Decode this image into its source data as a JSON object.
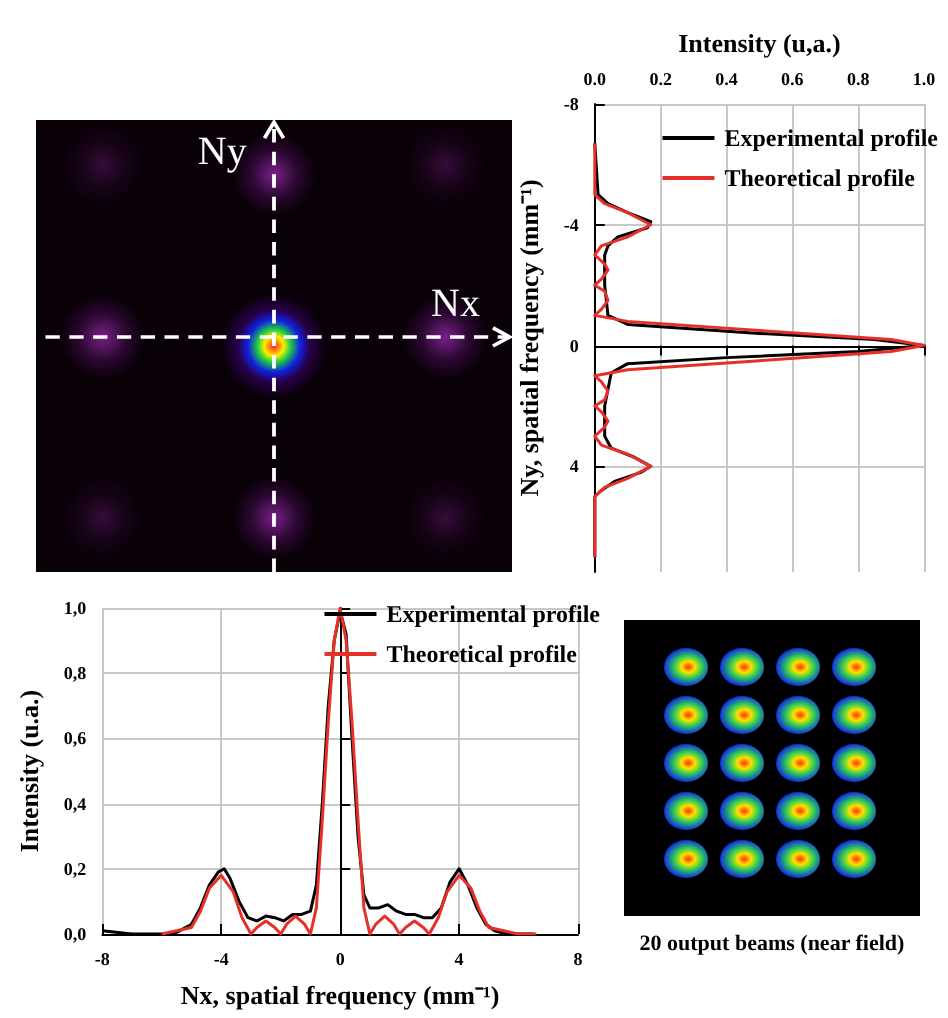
{
  "chart_data": [
    {
      "type": "other",
      "annotations": [
        "Ny",
        "Nx"
      ]
    },
    {
      "type": "line",
      "orientation": "horizontal",
      "xlabel": "Intensity (u,a.)",
      "ylabel": "Ny, spatial frequency (mm⁻¹)",
      "xlim": [
        0,
        1
      ],
      "xticks": [
        {
          "value": 0,
          "label": "0.0"
        },
        {
          "value": 0.2,
          "label": "0.2"
        },
        {
          "value": 0.4,
          "label": "0.4"
        },
        {
          "value": 0.6,
          "label": "0.6"
        },
        {
          "value": 0.8,
          "label": "0.8"
        },
        {
          "value": 1,
          "label": "1.0"
        }
      ],
      "ylim": [
        7.5,
        -8
      ],
      "yticks": [
        -8,
        -4,
        0,
        4
      ],
      "grid": true,
      "legend": "top right",
      "series": [
        {
          "name": "Experimental profile",
          "color": "#000000",
          "x": [
            -6.7,
            -5,
            -4.7,
            -4.4,
            -4.1,
            -3.9,
            -3.6,
            -3.3,
            -3,
            -2,
            -1,
            -0.7,
            -0.4,
            -0.2,
            0,
            0.2,
            0.4,
            0.6,
            0.9,
            2,
            3,
            3.4,
            3.7,
            4,
            4.2,
            4.5,
            4.8,
            5,
            7
          ],
          "values": [
            0,
            0.01,
            0.04,
            0.1,
            0.17,
            0.16,
            0.07,
            0.04,
            0.03,
            0.03,
            0.04,
            0.1,
            0.5,
            0.85,
            1,
            0.8,
            0.4,
            0.1,
            0.05,
            0.03,
            0.03,
            0.05,
            0.12,
            0.17,
            0.14,
            0.06,
            0.02,
            0,
            0
          ]
        },
        {
          "name": "Theoretical profile",
          "color": "#e8302a",
          "x": [
            -6.7,
            -5,
            -4.7,
            -4.4,
            -4,
            -3.6,
            -3.3,
            -3,
            -2.7,
            -2.5,
            -2.2,
            -2,
            -1.8,
            -1.5,
            -1.2,
            -1,
            -0.8,
            -0.5,
            -0.2,
            0,
            0.2,
            0.5,
            0.8,
            1,
            1.2,
            1.5,
            1.8,
            2,
            2.2,
            2.5,
            2.7,
            3,
            3.3,
            3.6,
            4,
            4.4,
            4.7,
            5,
            7
          ],
          "values": [
            0,
            0,
            0.03,
            0.1,
            0.17,
            0.1,
            0.02,
            0,
            0.03,
            0.04,
            0.02,
            0,
            0.03,
            0.04,
            0.02,
            0,
            0.1,
            0.5,
            0.9,
            1,
            0.9,
            0.5,
            0.1,
            0,
            0.02,
            0.04,
            0.03,
            0,
            0.02,
            0.04,
            0.03,
            0,
            0.02,
            0.1,
            0.17,
            0.1,
            0.03,
            0,
            0
          ]
        }
      ]
    },
    {
      "type": "line",
      "xlabel": "Nx, spatial frequency (mm⁻¹)",
      "ylabel": "Intensity (u.a.)",
      "xlim": [
        -8,
        8
      ],
      "xticks": [
        -8,
        -4,
        0,
        4,
        8
      ],
      "ylim": [
        0,
        1
      ],
      "yticks": [
        {
          "value": 0,
          "label": "0,0"
        },
        {
          "value": 0.2,
          "label": "0,2"
        },
        {
          "value": 0.4,
          "label": "0,4"
        },
        {
          "value": 0.6,
          "label": "0,6"
        },
        {
          "value": 0.8,
          "label": "0,8"
        },
        {
          "value": 1,
          "label": "1,0"
        }
      ],
      "grid": true,
      "legend": "top right",
      "series": [
        {
          "name": "Experimental profile",
          "color": "#000000",
          "x": [
            -8,
            -7,
            -6,
            -5.5,
            -5,
            -4.7,
            -4.4,
            -4.1,
            -3.9,
            -3.7,
            -3.4,
            -3.1,
            -2.8,
            -2.5,
            -2.2,
            -1.9,
            -1.6,
            -1.3,
            -1,
            -0.8,
            -0.6,
            -0.4,
            -0.2,
            0,
            0.2,
            0.4,
            0.6,
            0.8,
            1,
            1.3,
            1.6,
            1.9,
            2.2,
            2.5,
            2.8,
            3.1,
            3.4,
            3.7,
            4,
            4.3,
            4.6,
            4.9,
            5.2,
            5.6,
            6.5
          ],
          "values": [
            0.01,
            0,
            0,
            0.005,
            0.03,
            0.08,
            0.15,
            0.19,
            0.2,
            0.17,
            0.1,
            0.05,
            0.04,
            0.055,
            0.05,
            0.04,
            0.06,
            0.06,
            0.07,
            0.15,
            0.4,
            0.7,
            0.9,
            0.99,
            0.92,
            0.6,
            0.3,
            0.12,
            0.08,
            0.08,
            0.09,
            0.07,
            0.06,
            0.06,
            0.05,
            0.05,
            0.08,
            0.16,
            0.2,
            0.15,
            0.08,
            0.03,
            0.01,
            0,
            0
          ]
        },
        {
          "name": "Theoretical profile",
          "color": "#e8302a",
          "x": [
            -6,
            -5,
            -4.7,
            -4.4,
            -4,
            -3.6,
            -3.3,
            -3,
            -2.8,
            -2.5,
            -2.2,
            -2,
            -1.8,
            -1.5,
            -1.2,
            -1,
            -0.8,
            -0.6,
            -0.4,
            -0.2,
            0,
            0.2,
            0.4,
            0.6,
            0.8,
            1,
            1.2,
            1.5,
            1.8,
            2,
            2.2,
            2.5,
            2.8,
            3,
            3.3,
            3.6,
            4,
            4.4,
            4.7,
            5,
            6,
            6.6
          ],
          "values": [
            0,
            0.02,
            0.07,
            0.14,
            0.18,
            0.13,
            0.05,
            0,
            0.02,
            0.04,
            0.02,
            0,
            0.03,
            0.055,
            0.03,
            0,
            0.08,
            0.35,
            0.65,
            0.9,
            1,
            0.9,
            0.65,
            0.35,
            0.08,
            0,
            0.03,
            0.055,
            0.03,
            0,
            0.02,
            0.04,
            0.02,
            0,
            0.05,
            0.13,
            0.18,
            0.14,
            0.07,
            0.02,
            0,
            0
          ]
        }
      ]
    },
    {
      "type": "other",
      "title": "20 output beams (near field)"
    }
  ]
}
